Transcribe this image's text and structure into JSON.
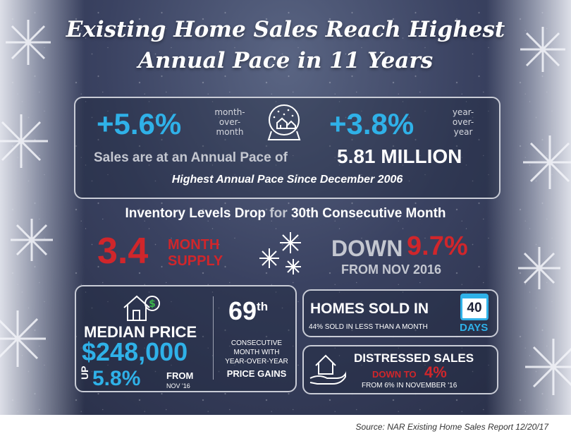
{
  "header": {
    "title_line1": "Existing Home Sales Reach Highest",
    "title_line2": "Annual Pace in 11 Years"
  },
  "sales_panel": {
    "mom_value": "+5.6%",
    "mom_label_1": "month-",
    "mom_label_2": "over-",
    "mom_label_3": "month",
    "yoy_value": "+3.8%",
    "yoy_label_1": "year-",
    "yoy_label_2": "over-",
    "yoy_label_3": "year",
    "pace_text": "Sales are at an Annual Pace of",
    "pace_value": "5.81 MILLION",
    "since_text": "Highest Annual Pace Since December 2006"
  },
  "inventory": {
    "heading_a": "Inventory Levels Drop",
    "heading_b": "for",
    "heading_c": "30th Consecutive Month",
    "supply_value": "3.4",
    "supply_label_1": "MONTH",
    "supply_label_2": "SUPPLY",
    "down_label": "DOWN",
    "down_value": "9.7%",
    "from_text": "FROM NOV 2016"
  },
  "median_panel": {
    "label": "MEDIAN PRICE",
    "value": "$248,000",
    "up_label": "UP",
    "up_value": "5.8%",
    "from_1": "FROM",
    "from_2": "NOV '16",
    "consec_value": "69",
    "consec_suffix": "th",
    "consec_1": "CONSECUTIVE",
    "consec_2": "MONTH WITH",
    "consec_3": "YEAR-OVER-YEAR",
    "consec_4": "PRICE GAINS"
  },
  "days_panel": {
    "label": "HOMES SOLD IN",
    "days_value": "40",
    "days_label": "DAYS",
    "sub": "44% SOLD IN LESS THAN A MONTH"
  },
  "distressed_panel": {
    "label": "DISTRESSED SALES",
    "down_to": "DOWN TO",
    "value": "4%",
    "sub": "FROM 6% IN NOVEMBER '16"
  },
  "footer": {
    "source": "Source: NAR Existing Home Sales Report 12/20/17"
  },
  "colors": {
    "background": "#3a4261",
    "accent_blue": "#2fb1e8",
    "accent_red": "#d0262b",
    "text_grey": "#c4c7d0"
  },
  "icons": [
    "snow-globe-icon",
    "snowflake-icon",
    "house-dollar-icon",
    "calendar-icon",
    "hand-house-icon",
    "frost-snowflake-icon"
  ]
}
